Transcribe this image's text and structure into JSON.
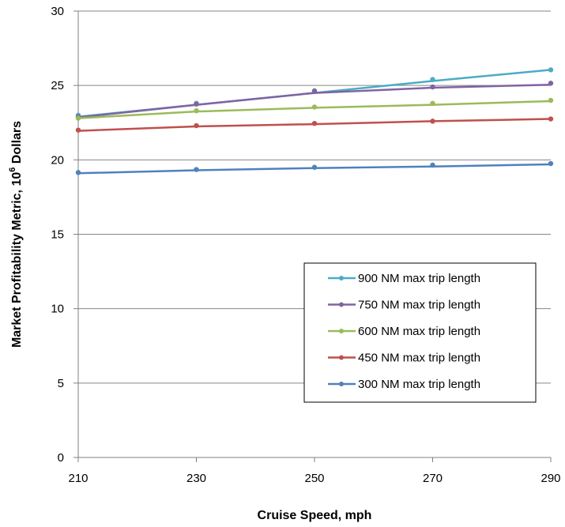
{
  "chart_data": {
    "type": "line",
    "x": [
      210,
      230,
      250,
      270,
      290
    ],
    "xlim": [
      210,
      290
    ],
    "ylim": [
      0,
      30
    ],
    "xticks": [
      "210",
      "230",
      "250",
      "270",
      "290"
    ],
    "yticks": [
      "0",
      "5",
      "10",
      "15",
      "20",
      "25",
      "30"
    ],
    "xlabel": "Cruise Speed,  mph",
    "ylabel_main": "Market Profitability Metric,  10",
    "ylabel_sup": "6",
    "ylabel_tail": " Dollars",
    "grid": "horizontal",
    "legend_placement": "lower-right",
    "series": [
      {
        "name": "900 NM max trip length",
        "color": "#4BACC6",
        "points": [
          23.0,
          23.8,
          24.65,
          25.4,
          26.05
        ],
        "fit": [
          22.9,
          23.7,
          24.5,
          25.3,
          26.05
        ]
      },
      {
        "name": "750 NM max trip length",
        "color": "#8064A2",
        "points": [
          22.9,
          23.75,
          24.6,
          24.9,
          25.15
        ],
        "fit": [
          22.85,
          23.7,
          24.5,
          24.85,
          25.05
        ]
      },
      {
        "name": "600 NM max trip length",
        "color": "#9BBB59",
        "points": [
          22.8,
          23.3,
          23.55,
          23.8,
          24.0
        ],
        "fit": [
          22.8,
          23.25,
          23.5,
          23.7,
          23.95
        ]
      },
      {
        "name": "450 NM max trip length",
        "color": "#C0504D",
        "points": [
          22.0,
          22.3,
          22.45,
          22.6,
          22.75
        ],
        "fit": [
          21.95,
          22.25,
          22.4,
          22.6,
          22.75
        ]
      },
      {
        "name": "300 NM max trip length",
        "color": "#4F81BD",
        "points": [
          19.15,
          19.35,
          19.5,
          19.65,
          19.75
        ],
        "fit": [
          19.1,
          19.3,
          19.45,
          19.55,
          19.7
        ]
      }
    ]
  }
}
